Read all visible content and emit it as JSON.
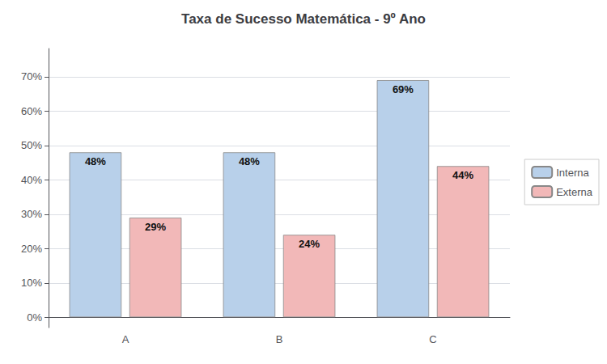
{
  "chart_data": {
    "type": "bar",
    "title": "Taxa de Sucesso Matemática - 9º Ano",
    "categories": [
      "A",
      "B",
      "C"
    ],
    "series": [
      {
        "name": "Interna",
        "color": "#b8d0ea",
        "values": [
          48,
          48,
          69
        ],
        "value_labels": [
          "48%",
          "48%",
          "69%"
        ]
      },
      {
        "name": "Externa",
        "color": "#f2b8b8",
        "values": [
          29,
          24,
          44
        ],
        "value_labels": [
          "29%",
          "24%",
          "44%"
        ]
      }
    ],
    "ylim": [
      -3,
      78.2
    ],
    "yticks": [
      {
        "value": 0,
        "label": "0%"
      },
      {
        "value": 10,
        "label": "10%"
      },
      {
        "value": 20,
        "label": "20%"
      },
      {
        "value": 30,
        "label": "30%"
      },
      {
        "value": 40,
        "label": "40%"
      },
      {
        "value": 50,
        "label": "50%"
      },
      {
        "value": 60,
        "label": "60%"
      },
      {
        "value": 70,
        "label": "70%"
      }
    ],
    "grid": true,
    "legend": "right",
    "data_labels": true
  }
}
